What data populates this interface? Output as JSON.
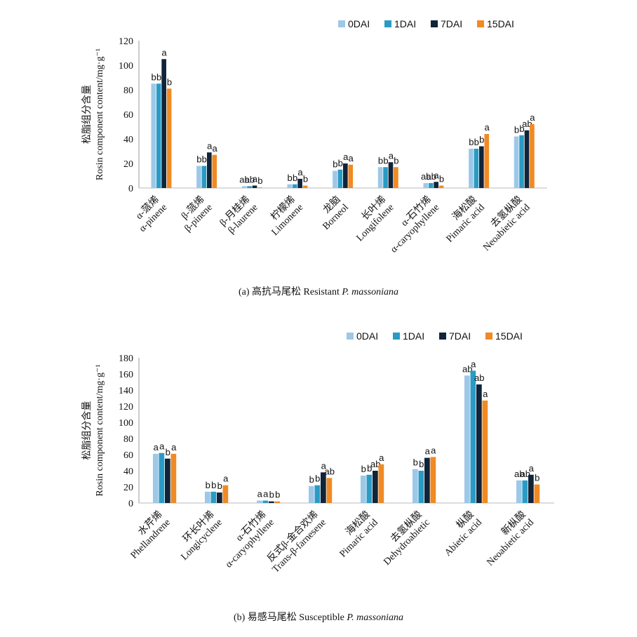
{
  "chart_data": [
    {
      "type": "bar",
      "ylabel": [
        "松脂组分含量",
        "Rosin component content/mg·g⁻¹"
      ],
      "caption": [
        "(a) 高抗马尾松 Resistant ",
        "P. massoniana"
      ],
      "categories": [
        [
          "α-蒎烯",
          "α-pinene"
        ],
        [
          "β-蒎烯",
          "β-pinene"
        ],
        [
          "β-月桂烯",
          "β-laurene"
        ],
        [
          "柠檬烯",
          "Limonene"
        ],
        [
          "龙脑",
          "Borneol"
        ],
        [
          "长叶烯",
          "Longifolene"
        ],
        [
          "α-石竹烯",
          "α-caryophyllene"
        ],
        [
          "海松酸",
          "Pimaric acid"
        ],
        [
          "去氢枞酸",
          "Neoabietic acid"
        ]
      ],
      "series": [
        {
          "name": "0DAI",
          "color": "#9dc8e8",
          "values": [
            85,
            18,
            1.5,
            3,
            14,
            17,
            4,
            32,
            42
          ],
          "letters": [
            "b",
            "b",
            "ab",
            "b",
            "b",
            "b",
            "ab",
            "b",
            "b"
          ]
        },
        {
          "name": "1DAI",
          "color": "#2a9bc4",
          "values": [
            85,
            18,
            1.5,
            3,
            15,
            17,
            4,
            32,
            43
          ],
          "letters": [
            "b",
            "b",
            "ab",
            "b",
            "b",
            "b",
            "ab",
            "b",
            "b"
          ]
        },
        {
          "name": "7DAI",
          "color": "#10243a",
          "values": [
            105,
            29,
            2,
            7.5,
            20,
            21,
            5,
            34,
            47
          ],
          "letters": [
            "a",
            "a",
            "a",
            "a",
            "a",
            "a",
            "a",
            "b",
            "ab"
          ]
        },
        {
          "name": "15DAI",
          "color": "#f08a24",
          "values": [
            81,
            27,
            0.5,
            2,
            19,
            17,
            2,
            44,
            52
          ],
          "letters": [
            "b",
            "a",
            "b",
            "b",
            "a",
            "b",
            "b",
            "a",
            "a"
          ]
        }
      ],
      "ylim": [
        0,
        120
      ],
      "yticks": [
        0,
        20,
        40,
        60,
        80,
        100,
        120
      ],
      "grid": false,
      "legend": "top-right"
    },
    {
      "type": "bar",
      "ylabel": [
        "松脂组分含量",
        "Rosin component content/mg·g⁻¹"
      ],
      "caption": [
        "(b) 易感马尾松 Susceptible ",
        "P. massoniana"
      ],
      "categories": [
        [
          "水芹烯",
          "Phellandrene"
        ],
        [
          "环长叶烯",
          "Longicyclene"
        ],
        [
          "α-石竹烯",
          "α-caryophyllene"
        ],
        [
          "反式β-金合欢烯",
          "Trans-β-farnesene"
        ],
        [
          "海松酸",
          "Pimaric acid"
        ],
        [
          "去氢枞酸",
          "Dehydroabietic"
        ],
        [
          "枞酸",
          "Abietic acid"
        ],
        [
          "新枞酸",
          "Neoabietic acid"
        ]
      ],
      "series": [
        {
          "name": "0DAI",
          "color": "#9dc8e8",
          "values": [
            61,
            14,
            3,
            21,
            34,
            42,
            158,
            28
          ],
          "letters": [
            "a",
            "b",
            "a",
            "b",
            "b",
            "b",
            "ab",
            "ab"
          ]
        },
        {
          "name": "1DAI",
          "color": "#2a9bc4",
          "values": [
            62,
            14,
            3,
            22,
            35,
            40,
            164,
            28
          ],
          "letters": [
            "a",
            "b",
            "a",
            "b",
            "b",
            "b",
            "a",
            "ab"
          ]
        },
        {
          "name": "7DAI",
          "color": "#10243a",
          "values": [
            55,
            13,
            2,
            38,
            40,
            56,
            147,
            35
          ],
          "letters": [
            "b",
            "b",
            "b",
            "a",
            "ab",
            "a",
            "ab",
            "a"
          ]
        },
        {
          "name": "15DAI",
          "color": "#f08a24",
          "values": [
            61,
            22,
            2,
            31,
            48,
            57,
            127,
            23
          ],
          "letters": [
            "a",
            "a",
            "b",
            "ab",
            "a",
            "a",
            "a",
            "b"
          ]
        }
      ],
      "ylim": [
        0,
        180
      ],
      "yticks": [
        0,
        20,
        40,
        60,
        80,
        100,
        120,
        140,
        160,
        180
      ],
      "grid": false,
      "legend": "top-right"
    }
  ]
}
